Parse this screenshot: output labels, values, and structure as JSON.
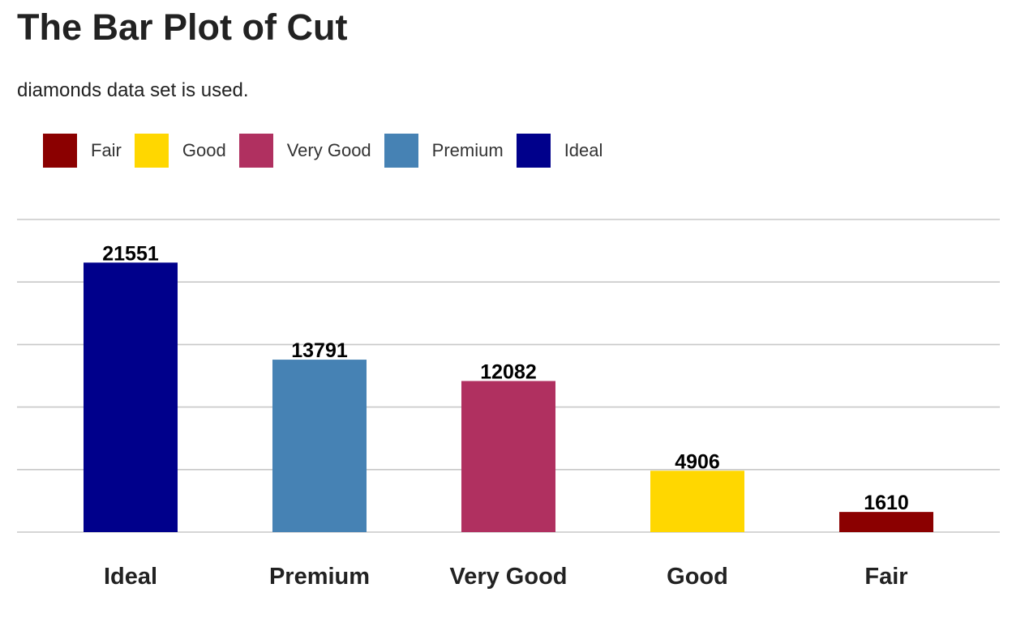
{
  "chart_data": {
    "type": "bar",
    "title": "The Bar Plot of Cut",
    "subtitle": "diamonds data set is used.",
    "xlabel": "",
    "ylabel": "",
    "categories": [
      "Ideal",
      "Premium",
      "Very Good",
      "Good",
      "Fair"
    ],
    "values": [
      21551,
      13791,
      12082,
      4906,
      1610
    ],
    "ylim": [
      0,
      25000
    ],
    "grid": true,
    "legend_position": "top-left",
    "legend": [
      {
        "label": "Fair",
        "color": "#8B0000"
      },
      {
        "label": "Good",
        "color": "#FFD700"
      },
      {
        "label": "Very Good",
        "color": "#B03060"
      },
      {
        "label": "Premium",
        "color": "#4682B4"
      },
      {
        "label": "Ideal",
        "color": "#00008B"
      }
    ],
    "bar_colors": [
      "#00008B",
      "#4682B4",
      "#B03060",
      "#FFD700",
      "#8B0000"
    ]
  }
}
